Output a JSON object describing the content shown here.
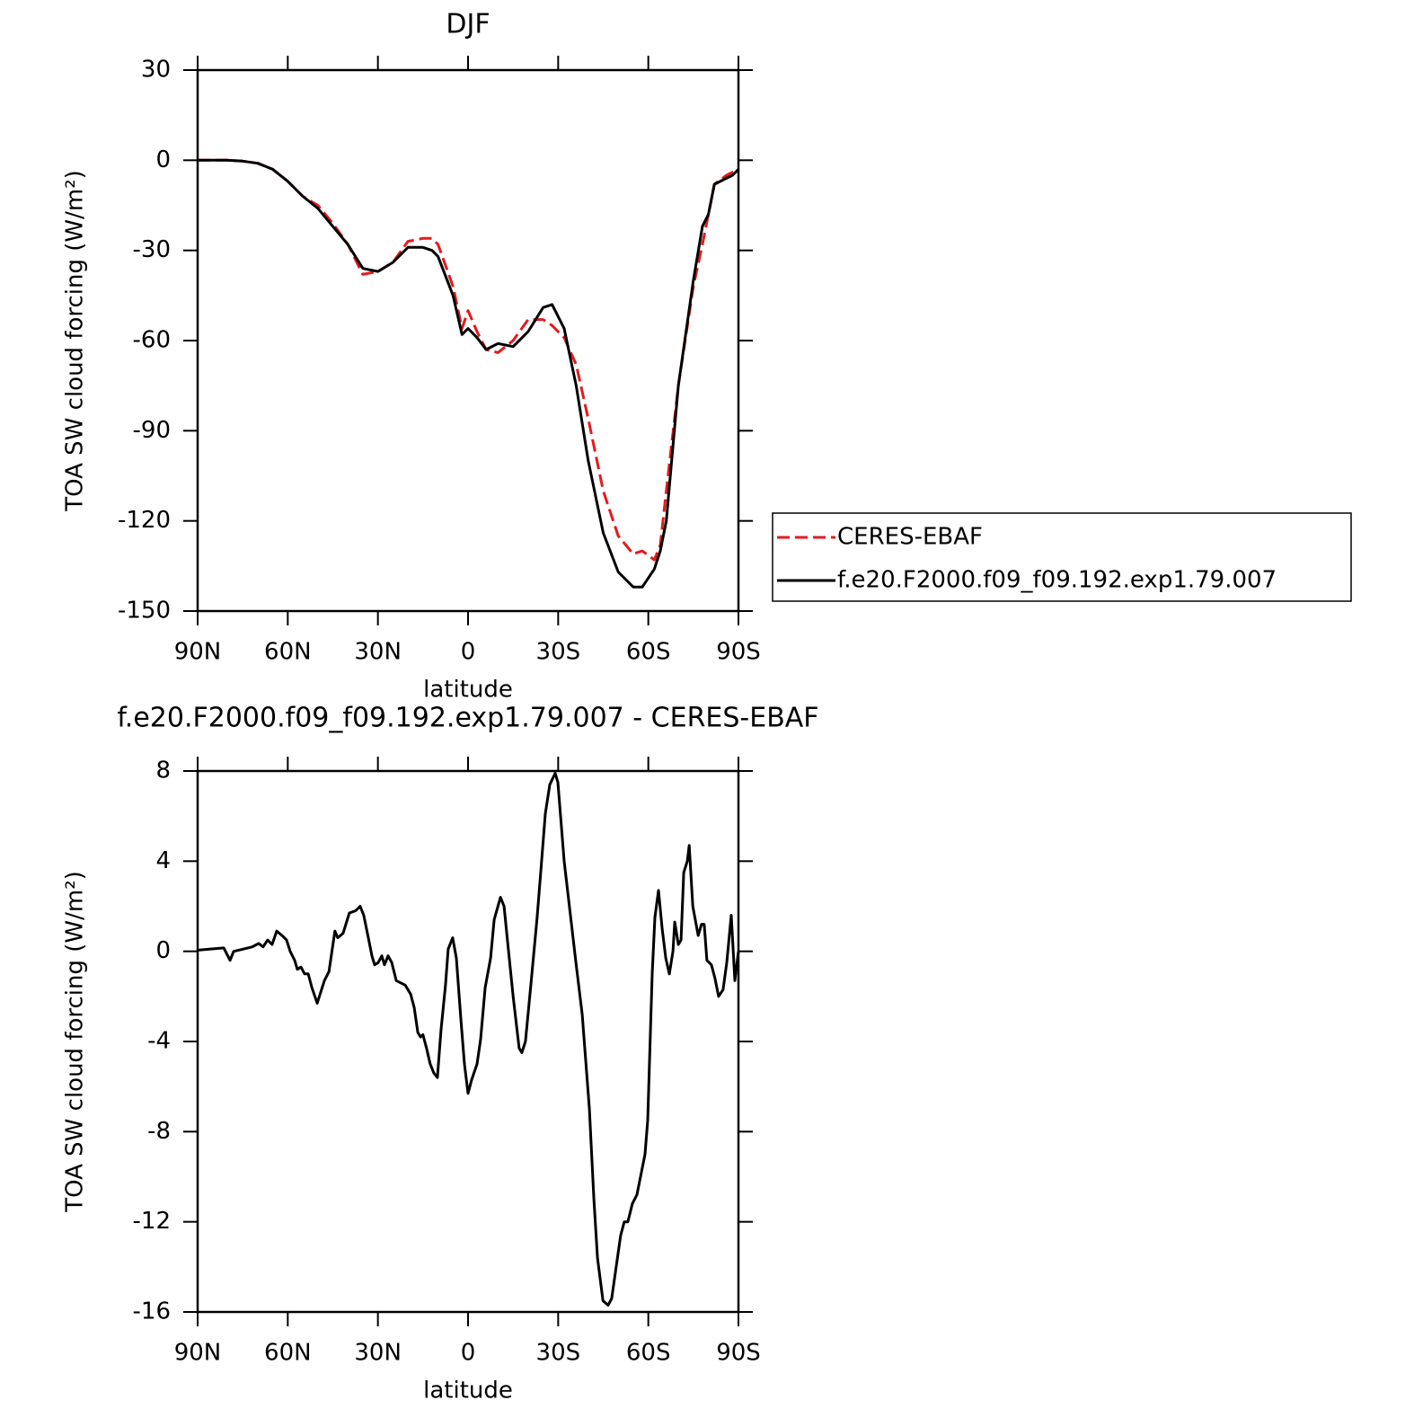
{
  "chart_data": [
    {
      "type": "line",
      "title": "DJF",
      "xlabel": "latitude",
      "ylabel": "TOA SW cloud forcing (W/m²)",
      "xlim": [
        90,
        -90
      ],
      "ylim": [
        -150,
        30
      ],
      "xticks": [
        {
          "value": 90,
          "label": "90N"
        },
        {
          "value": 60,
          "label": "60N"
        },
        {
          "value": 30,
          "label": "30N"
        },
        0,
        {
          "value": -30,
          "label": "30S"
        },
        {
          "value": -60,
          "label": "60S"
        },
        {
          "value": -90,
          "label": "90S"
        }
      ],
      "yticks": [
        30,
        0,
        -30,
        -60,
        -90,
        -120,
        -150
      ],
      "legend": "right",
      "x": [
        90,
        85,
        80,
        75,
        70,
        65,
        60,
        55,
        50,
        45,
        40,
        35,
        30,
        25,
        20,
        15,
        12,
        10,
        5,
        2,
        0,
        -3,
        -6,
        -10,
        -15,
        -20,
        -25,
        -28,
        -32,
        -36,
        -40,
        -45,
        -50,
        -55,
        -58,
        -62,
        -64,
        -66,
        -70,
        -75,
        -78,
        -80,
        -82,
        -86,
        -88,
        -90
      ],
      "series": [
        {
          "name": "CERES-EBAF",
          "color": "#e41a1c",
          "linestyle": "dashed",
          "values": [
            0,
            0,
            0,
            -0.3,
            -1,
            -3,
            -7,
            -12,
            -15,
            -21,
            -28,
            -38,
            -37,
            -34,
            -27,
            -26,
            -26,
            -28,
            -42,
            -56,
            -50,
            -57,
            -63,
            -64,
            -60,
            -53,
            -53,
            -55,
            -59,
            -68,
            -86,
            -110,
            -125,
            -131,
            -130,
            -133,
            -128,
            -110,
            -75,
            -42,
            -28,
            -18,
            -8,
            -5,
            -4,
            -4
          ]
        },
        {
          "name": "f.e20.F2000.f09_f09.192.exp1.79.007",
          "color": "#000000",
          "linestyle": "solid",
          "values": [
            0,
            0,
            0,
            -0.3,
            -1,
            -3,
            -7,
            -12,
            -16,
            -22,
            -28,
            -36,
            -37,
            -34,
            -29,
            -29,
            -30,
            -32,
            -45,
            -58,
            -56,
            -59,
            -63,
            -61,
            -62,
            -57,
            -49,
            -48,
            -56,
            -75,
            -100,
            -124,
            -137,
            -142,
            -142,
            -136,
            -130,
            -120,
            -75,
            -40,
            -22,
            -18,
            -8,
            -6,
            -5,
            -3
          ]
        }
      ]
    },
    {
      "type": "line",
      "title": "f.e20.F2000.f09_f09.192.exp1.79.007 - CERES-EBAF",
      "xlabel": "latitude",
      "ylabel": "TOA SW cloud forcing (W/m²)",
      "xlim": [
        90,
        -90
      ],
      "ylim": [
        -16,
        8
      ],
      "xticks": [
        {
          "value": 90,
          "label": "90N"
        },
        {
          "value": 60,
          "label": "60N"
        },
        {
          "value": 30,
          "label": "30N"
        },
        0,
        {
          "value": -30,
          "label": "30S"
        },
        {
          "value": -60,
          "label": "60S"
        },
        {
          "value": -90,
          "label": "90S"
        }
      ],
      "yticks": [
        8,
        4,
        0,
        -4,
        -8,
        -12,
        -16
      ],
      "color": "#000000",
      "x": [
        90,
        81.3,
        79.2,
        78,
        74.8,
        71.8,
        69.7,
        68.2,
        66.7,
        65.2,
        63.7,
        61.9,
        60.4,
        59.2,
        57.7,
        56.8,
        55.6,
        54.4,
        53.2,
        52,
        50.2,
        49,
        47.8,
        46.3,
        44.3,
        43.4,
        41.6,
        39.5,
        37.4,
        35.9,
        34.7,
        33.2,
        32,
        31.1,
        29.9,
        28.7,
        27.8,
        26.6,
        25.4,
        23.9,
        20.9,
        19.1,
        17.9,
        16.7,
        15.8,
        15,
        13.8,
        12.6,
        11.4,
        10.2,
        9,
        7.5,
        6.6,
        5.1,
        3.9,
        2.4,
        1.2,
        0,
        -1.2,
        -3,
        -4.2,
        -5.7,
        -7.5,
        -8.7,
        -10.8,
        -12,
        -13.5,
        -15,
        -17,
        -17.9,
        -19.1,
        -20.9,
        -23,
        -24.2,
        -25.7,
        -27.2,
        -29,
        -29.9,
        -32,
        -35.9,
        -38,
        -40.4,
        -41.9,
        -43.1,
        -44.9,
        -46.6,
        -47.8,
        -49.3,
        -50.8,
        -52,
        -53.2,
        -54.7,
        -56.2,
        -57.4,
        -58.9,
        -59.8,
        -61.3,
        -62.2,
        -63.4,
        -64.6,
        -65.8,
        -67,
        -68.2,
        -68.8,
        -70,
        -70.9,
        -71.8,
        -73,
        -73.6,
        -74.8,
        -76.6,
        -77.7,
        -78.6,
        -79.5,
        -81,
        -82.2,
        -83.4,
        -84.9,
        -86.1,
        -87.6,
        -88.8,
        -90
      ],
      "values": [
        0.05,
        0.15,
        -0.4,
        0,
        0.1,
        0.2,
        0.35,
        0.2,
        0.5,
        0.3,
        0.9,
        0.7,
        0.5,
        0,
        -0.4,
        -0.8,
        -0.7,
        -1,
        -1,
        -1.6,
        -2.3,
        -1.8,
        -1.3,
        -0.9,
        0.9,
        0.6,
        0.8,
        1.7,
        1.8,
        2,
        1.6,
        0.6,
        -0.2,
        -0.6,
        -0.5,
        -0.2,
        -0.6,
        -0.2,
        -0.5,
        -1.3,
        -1.5,
        -1.9,
        -2.5,
        -3.6,
        -3.8,
        -3.7,
        -4.3,
        -5,
        -5.4,
        -5.6,
        -3.5,
        -1.5,
        0.1,
        0.6,
        -0.3,
        -3,
        -5,
        -6.3,
        -5.7,
        -5,
        -3.9,
        -1.6,
        -0.3,
        1.4,
        2.4,
        2,
        0,
        -2,
        -4.3,
        -4.5,
        -4,
        -1.5,
        1.5,
        3.5,
        6.1,
        7.4,
        7.9,
        7.5,
        4,
        -0.5,
        -2.8,
        -7,
        -11,
        -13.6,
        -15.5,
        -15.7,
        -15.4,
        -14,
        -12.6,
        -12,
        -12,
        -11.2,
        -10.8,
        -10,
        -9,
        -7.5,
        -1,
        1.5,
        2.7,
        1,
        -0.3,
        -1,
        0,
        1.3,
        0.3,
        0.5,
        3.5,
        4,
        4.7,
        2,
        0.7,
        1.2,
        1.2,
        -0.4,
        -0.6,
        -1.2,
        -2,
        -1.7,
        -0.5,
        1.6,
        -1.3,
        0
      ]
    }
  ]
}
